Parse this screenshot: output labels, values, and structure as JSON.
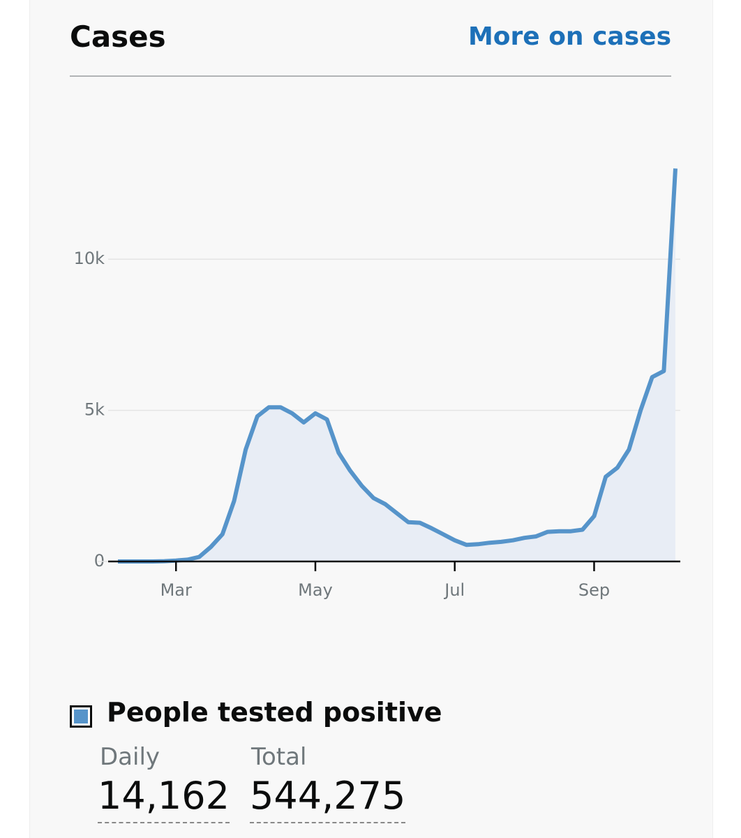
{
  "header": {
    "title": "Cases",
    "link": "More on cases"
  },
  "chart_data": {
    "type": "line",
    "categories": [
      null,
      null,
      null,
      null,
      null,
      "Mar",
      null,
      null,
      null,
      null,
      null,
      null,
      null,
      null,
      null,
      null,
      null,
      "May",
      null,
      null,
      null,
      null,
      null,
      null,
      null,
      null,
      null,
      null,
      null,
      "Jul",
      null,
      null,
      null,
      null,
      null,
      null,
      null,
      null,
      null,
      null,
      null,
      "Sep",
      null,
      null,
      null,
      null,
      null,
      null,
      null
    ],
    "values": [
      0,
      0,
      0,
      0,
      10,
      30,
      60,
      150,
      480,
      900,
      2000,
      3700,
      4800,
      5100,
      5100,
      4900,
      4600,
      4900,
      4700,
      3600,
      3000,
      2500,
      2100,
      1900,
      1600,
      1300,
      1280,
      1100,
      900,
      700,
      550,
      570,
      620,
      650,
      700,
      780,
      830,
      980,
      1000,
      1000,
      1050,
      1500,
      2800,
      3100,
      3700,
      5000,
      6100,
      6300,
      13000
    ],
    "color": "#5694ca",
    "fill": "#e8edf5",
    "ylim": [
      0,
      14000
    ],
    "yticks": [
      0,
      {
        "value": 5000,
        "label": "5k"
      },
      {
        "value": 10000,
        "label": "10k"
      }
    ],
    "grid": true
  },
  "summary": {
    "legend": "People tested positive",
    "daily_label": "Daily",
    "daily": "14,162",
    "total_label": "Total",
    "total": "544,275"
  }
}
